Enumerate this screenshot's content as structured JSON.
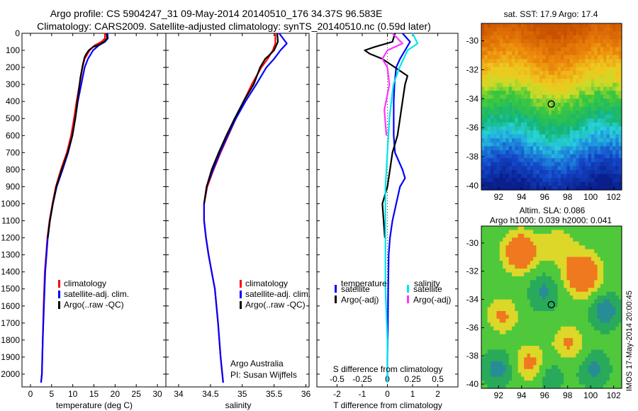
{
  "header": {
    "title_line1": "Argo profile: CS 5904247_31 09-May-2014 20140510_176 34.37S 96.583E",
    "title_line2": "Climatology: CARS2009. Satellite-adjusted climatology: synTS_20140510.nc (0.59d later)"
  },
  "colors": {
    "climatology": "#ff0000",
    "satellite": "#0000ff",
    "argo": "#000000",
    "salinity_satellite": "#00e5ee",
    "salinity_argo": "#ff33ff"
  },
  "chart_data": [
    {
      "type": "line",
      "id": "temperature",
      "xlabel": "temperature (deg C)",
      "ylabel": "",
      "xlim": [
        -2,
        32
      ],
      "ylim": [
        2075,
        0
      ],
      "xticks": [
        0,
        5,
        10,
        15,
        20,
        25,
        30
      ],
      "yticks": [
        0,
        100,
        200,
        300,
        400,
        500,
        600,
        700,
        800,
        900,
        1000,
        1100,
        1200,
        1300,
        1400,
        1500,
        1600,
        1700,
        1800,
        1900,
        2000
      ],
      "legend": [
        "climatology",
        "satellite-adj. clim.",
        "Argo(..raw -QC)"
      ],
      "series": [
        {
          "name": "climatology",
          "color": "#ff0000",
          "x": [
            17.6,
            17.6,
            16.8,
            15.2,
            14.0,
            12.8,
            12.3,
            11.6,
            10.9,
            10.3,
            9.6,
            8.6,
            7.2,
            6.0,
            5.2,
            4.5,
            4.0,
            3.7,
            3.4,
            3.1,
            2.9,
            2.7,
            2.5
          ],
          "y": [
            0,
            30,
            50,
            70,
            100,
            150,
            200,
            300,
            400,
            500,
            600,
            700,
            800,
            900,
            1000,
            1100,
            1200,
            1300,
            1400,
            1600,
            1800,
            2000,
            2050
          ]
        },
        {
          "name": "satellite-adj. clim.",
          "color": "#0000ff",
          "x": [
            18.2,
            18.3,
            17.6,
            16.2,
            14.8,
            13.6,
            12.8,
            12.0,
            11.2,
            10.6,
            9.9,
            8.9,
            7.6,
            6.2,
            5.3,
            4.6,
            4.1,
            3.8,
            3.5,
            3.2,
            2.9,
            2.7,
            2.5
          ],
          "y": [
            0,
            30,
            50,
            70,
            100,
            150,
            200,
            300,
            400,
            500,
            600,
            700,
            800,
            900,
            1000,
            1100,
            1200,
            1300,
            1400,
            1600,
            1800,
            2000,
            2050
          ]
        },
        {
          "name": "Argo(..raw -QC)",
          "color": "#000000",
          "x": [
            18.0,
            18.1,
            17.4,
            16.0,
            14.8,
            13.8,
            13.2,
            12.8,
            12.4,
            11.8,
            11.2,
            10.6,
            9.9,
            8.8,
            7.4,
            6.1,
            5.3,
            4.6,
            4.1
          ],
          "y": [
            0,
            30,
            50,
            70,
            80,
            100,
            120,
            140,
            180,
            260,
            380,
            500,
            600,
            700,
            800,
            900,
            1000,
            1100,
            1200
          ]
        }
      ]
    },
    {
      "type": "line",
      "id": "salinity",
      "xlabel": "salinity",
      "ylabel": "",
      "xlim": [
        33.8,
        36.05
      ],
      "ylim": [
        2075,
        0
      ],
      "xticks": [
        34,
        34.5,
        35,
        35.5,
        36
      ],
      "legend": [
        "climatology",
        "satellite-adj. clim.",
        "Argo(..raw -QC)"
      ],
      "annotation": [
        "Argo Australia",
        "PI: Susan Wijffels"
      ],
      "series": [
        {
          "name": "climatology",
          "color": "#ff0000",
          "x": [
            35.52,
            35.52,
            35.48,
            35.4,
            35.3,
            35.15,
            35.02,
            34.9,
            34.78,
            34.66,
            34.55,
            34.45,
            34.4,
            34.4,
            34.43,
            34.47,
            34.52,
            34.57,
            34.62,
            34.66,
            34.7
          ],
          "y": [
            0,
            60,
            100,
            150,
            200,
            300,
            400,
            500,
            600,
            700,
            800,
            900,
            1000,
            1100,
            1200,
            1300,
            1400,
            1500,
            1700,
            1900,
            2050
          ]
        },
        {
          "name": "satellite-adj. clim.",
          "color": "#0000ff",
          "x": [
            35.58,
            35.7,
            35.6,
            35.5,
            35.38,
            35.22,
            35.05,
            34.9,
            34.77,
            34.65,
            34.54,
            34.44,
            34.4,
            34.4,
            34.43,
            34.47,
            34.52,
            34.57,
            34.62,
            34.66,
            34.7
          ],
          "y": [
            0,
            60,
            100,
            150,
            200,
            300,
            400,
            500,
            600,
            700,
            800,
            900,
            1000,
            1100,
            1200,
            1300,
            1400,
            1500,
            1700,
            1900,
            2050
          ]
        },
        {
          "name": "Argo(..raw -QC)",
          "color": "#000000",
          "x": [
            35.55,
            35.56,
            35.5,
            35.42,
            35.36,
            35.28,
            35.18,
            35.02,
            34.88,
            34.75,
            34.63,
            34.52,
            34.44,
            34.4
          ],
          "y": [
            0,
            50,
            100,
            130,
            150,
            200,
            300,
            400,
            500,
            600,
            700,
            800,
            900,
            1000
          ]
        }
      ]
    },
    {
      "type": "line",
      "id": "difference",
      "xlabel": "T difference from climatology",
      "xlabel2": "S difference from climatology",
      "xlim": [
        -2.8,
        2.8
      ],
      "ylim": [
        2075,
        0
      ],
      "xticks": [
        -2,
        -1,
        0,
        1,
        2
      ],
      "xticklabels": [
        "-2",
        "-1",
        "0",
        "1",
        "2"
      ],
      "xticks_s": [
        -0.5,
        -0.25,
        0,
        0.25,
        0.5
      ],
      "xticklabels_s": [
        "-0.5",
        "-0.25",
        "0",
        "0.25",
        "0.5"
      ],
      "legend": {
        "temperature_header": "temperature",
        "salinity_header": "salinity",
        "temperature": [
          "satellite",
          "Argo(-adj)"
        ],
        "salinity": [
          "satellite",
          "Argo(-adj)"
        ]
      },
      "series": [
        {
          "name": "temperature satellite",
          "color": "#0000ff",
          "x": [
            0.6,
            0.9,
            0.7,
            0.5,
            0.35,
            0.28,
            0.25,
            0.25,
            0.25,
            0.3,
            0.6,
            0.7,
            0.5,
            0.35,
            0.2,
            0.1,
            0.05,
            0.03,
            0.02,
            0.0,
            0.0
          ],
          "y": [
            0,
            50,
            100,
            150,
            200,
            300,
            400,
            500,
            600,
            700,
            800,
            850,
            900,
            1000,
            1100,
            1200,
            1300,
            1500,
            1700,
            1900,
            2050
          ]
        },
        {
          "name": "temperature Argo(-adj)",
          "color": "#000000",
          "x": [
            0.3,
            0.2,
            -0.5,
            -0.9,
            -0.7,
            -0.2,
            0.3,
            0.8,
            0.7,
            0.6,
            0.5,
            0.4,
            0.2,
            0.1,
            0.0,
            -0.2,
            -0.1
          ],
          "y": [
            0,
            50,
            80,
            100,
            120,
            150,
            200,
            250,
            300,
            400,
            500,
            600,
            700,
            800,
            900,
            1000,
            1200
          ]
        },
        {
          "name": "salinity satellite",
          "color": "#00e5ee",
          "x": [
            0.25,
            0.3,
            0.2,
            0.12,
            0.06,
            0.02,
            0.0,
            -0.02,
            -0.02,
            -0.02,
            0.0,
            0.0
          ],
          "y": [
            0,
            60,
            100,
            200,
            300,
            500,
            700,
            900,
            1200,
            1500,
            1800,
            2050
          ]
        },
        {
          "name": "salinity Argo(-adj)",
          "color": "#ff33ff",
          "x": [
            0.05,
            0.15,
            0.0,
            -0.05,
            0.0,
            0.02,
            -0.03,
            -0.01
          ],
          "y": [
            0,
            60,
            100,
            150,
            200,
            300,
            450,
            600
          ]
        }
      ]
    },
    {
      "type": "heatmap",
      "id": "sst-map",
      "title": "sat. SST: 17.9 Argo: 17.4",
      "xlim": [
        90.5,
        102.7
      ],
      "ylim": [
        -40.3,
        -28.8
      ],
      "xticks": [
        92,
        94,
        96,
        98,
        100,
        102
      ],
      "yticks": [
        -30,
        -32,
        -34,
        -36,
        -38,
        -40
      ],
      "marker": {
        "lon": 96.58,
        "lat": -34.37
      }
    },
    {
      "type": "heatmap",
      "id": "sla-map",
      "title": "Altim. SLA: 0.086",
      "subtitle": "Argo h1000: 0.039 h2000: 0.041",
      "xlim": [
        90.5,
        102.7
      ],
      "ylim": [
        -40.3,
        -28.8
      ],
      "xticks": [
        92,
        94,
        96,
        98,
        100,
        102
      ],
      "yticks": [
        -30,
        -32,
        -34,
        -36,
        -38,
        -40
      ],
      "marker": {
        "lon": 96.58,
        "lat": -34.37
      }
    }
  ],
  "side_stamp": "IMOS 17-May-2014 20:00:45"
}
